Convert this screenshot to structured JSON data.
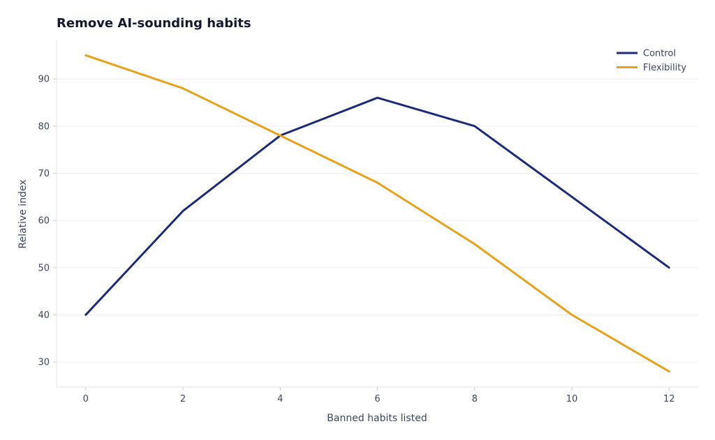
{
  "chart_data": {
    "type": "line",
    "title": "Remove AI-sounding habits",
    "xlabel": "Banned habits listed",
    "ylabel": "Relative index",
    "x": [
      0,
      2,
      4,
      6,
      8,
      10,
      12
    ],
    "xticks": [
      0,
      2,
      4,
      6,
      8,
      10,
      12
    ],
    "yticks": [
      30,
      40,
      50,
      60,
      70,
      80,
      90
    ],
    "xlim": [
      -0.6,
      12.6
    ],
    "ylim": [
      24.7,
      98.3
    ],
    "grid": "horizontal",
    "legend_position": "top-right",
    "series": [
      {
        "name": "Control",
        "color": "#1c2a7a",
        "values": [
          40,
          62,
          78,
          86,
          80,
          65,
          50
        ]
      },
      {
        "name": "Flexibility",
        "color": "#e8a219",
        "values": [
          95,
          88,
          78,
          68,
          55,
          40,
          28
        ]
      }
    ]
  }
}
